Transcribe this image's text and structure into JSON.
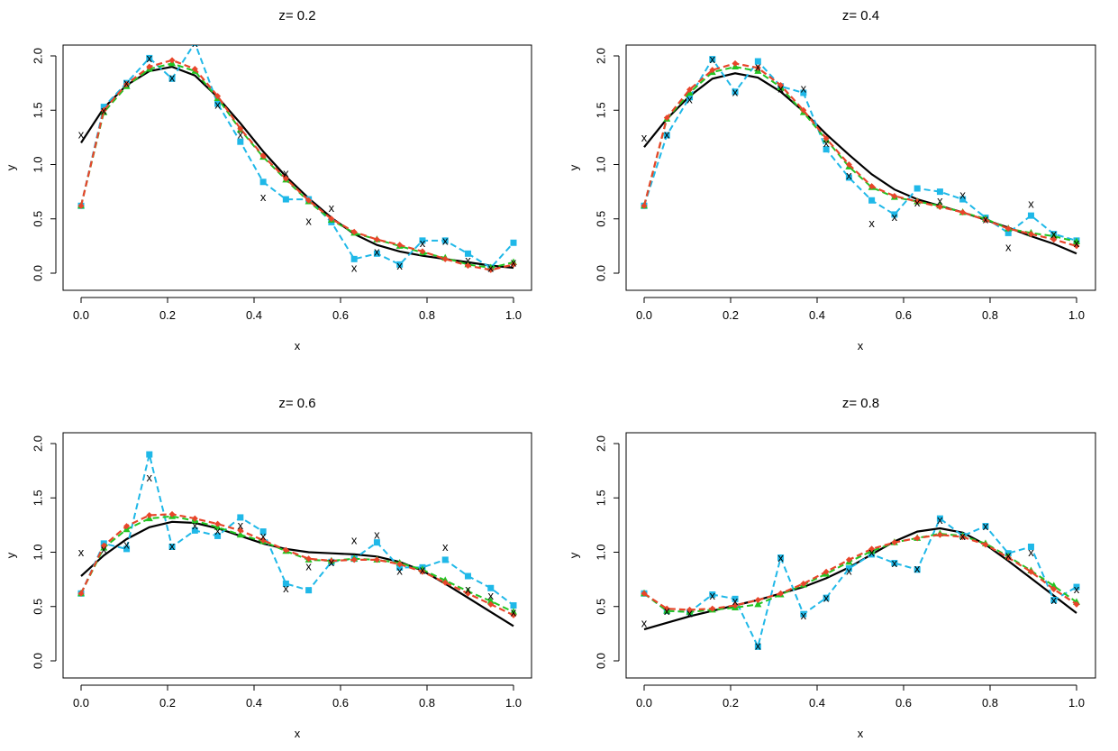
{
  "colors": {
    "truth": "#000000",
    "series_a": "#1fb8e8",
    "series_b": "#22c422",
    "series_c": "#e8452a",
    "series_d": "#b80000",
    "observed": "#000000"
  },
  "chart_data": [
    {
      "type": "line",
      "title": "z= 0.2",
      "xlabel": "x",
      "ylabel": "y",
      "xlim": [
        0,
        1
      ],
      "ylim": [
        0,
        2
      ],
      "xticks": [
        "0.0",
        "0.2",
        "0.4",
        "0.6",
        "0.8",
        "1.0"
      ],
      "yticks": [
        "0.0",
        "0.5",
        "1.0",
        "1.5",
        "2.0"
      ],
      "x": [
        0,
        0.0526,
        0.1053,
        0.1579,
        0.2105,
        0.2632,
        0.3158,
        0.3684,
        0.4211,
        0.4737,
        0.5263,
        0.5789,
        0.6316,
        0.6842,
        0.7368,
        0.7895,
        0.8421,
        0.8947,
        0.9474,
        1.0
      ],
      "truth": [
        1.2,
        1.52,
        1.73,
        1.86,
        1.9,
        1.82,
        1.62,
        1.38,
        1.12,
        0.89,
        0.69,
        0.51,
        0.36,
        0.26,
        0.2,
        0.16,
        0.13,
        0.1,
        0.07,
        0.05
      ],
      "observed": [
        1.28,
        1.5,
        1.75,
        1.98,
        1.8,
        2.12,
        1.55,
        1.28,
        0.7,
        0.92,
        0.48,
        0.6,
        0.05,
        0.2,
        0.07,
        0.28,
        0.3,
        0.12,
        0.05,
        0.1
      ],
      "series": [
        {
          "name": "cyan",
          "values": [
            0.62,
            1.53,
            1.75,
            1.98,
            1.79,
            2.12,
            1.56,
            1.21,
            0.84,
            0.68,
            0.68,
            0.47,
            0.13,
            0.18,
            0.08,
            0.3,
            0.3,
            0.18,
            0.05,
            0.28
          ]
        },
        {
          "name": "green",
          "values": [
            0.62,
            1.48,
            1.72,
            1.88,
            1.93,
            1.86,
            1.61,
            1.32,
            1.07,
            0.86,
            0.66,
            0.49,
            0.37,
            0.31,
            0.25,
            0.19,
            0.14,
            0.08,
            0.05,
            0.1
          ]
        },
        {
          "name": "orange",
          "values": [
            0.62,
            1.5,
            1.74,
            1.9,
            1.96,
            1.88,
            1.63,
            1.33,
            1.08,
            0.87,
            0.67,
            0.5,
            0.38,
            0.31,
            0.26,
            0.2,
            0.13,
            0.07,
            0.03,
            0.08
          ]
        }
      ]
    },
    {
      "type": "line",
      "title": "z= 0.4",
      "xlabel": "x",
      "ylabel": "y",
      "xlim": [
        0,
        1
      ],
      "ylim": [
        0,
        2
      ],
      "xticks": [
        "0.0",
        "0.2",
        "0.4",
        "0.6",
        "0.8",
        "1.0"
      ],
      "yticks": [
        "0.0",
        "0.5",
        "1.0",
        "1.5",
        "2.0"
      ],
      "x": [
        0,
        0.0526,
        0.1053,
        0.1579,
        0.2105,
        0.2632,
        0.3158,
        0.3684,
        0.4211,
        0.4737,
        0.5263,
        0.5789,
        0.6316,
        0.6842,
        0.7368,
        0.7895,
        0.8421,
        0.8947,
        0.9474,
        1.0
      ],
      "truth": [
        1.16,
        1.42,
        1.63,
        1.79,
        1.84,
        1.8,
        1.67,
        1.49,
        1.28,
        1.09,
        0.91,
        0.77,
        0.68,
        0.62,
        0.56,
        0.49,
        0.42,
        0.34,
        0.27,
        0.18
      ],
      "observed": [
        1.25,
        1.28,
        1.6,
        1.97,
        1.67,
        1.9,
        1.7,
        1.7,
        1.2,
        0.9,
        0.46,
        0.52,
        0.65,
        0.67,
        0.72,
        0.5,
        0.24,
        0.64,
        0.36,
        0.28
      ],
      "series": [
        {
          "name": "cyan",
          "values": [
            0.62,
            1.27,
            1.62,
            1.97,
            1.67,
            1.95,
            1.72,
            1.66,
            1.14,
            0.88,
            0.67,
            0.54,
            0.78,
            0.75,
            0.68,
            0.51,
            0.37,
            0.53,
            0.36,
            0.3
          ]
        },
        {
          "name": "green",
          "values": [
            0.62,
            1.42,
            1.66,
            1.85,
            1.9,
            1.86,
            1.71,
            1.48,
            1.23,
            0.98,
            0.79,
            0.7,
            0.66,
            0.62,
            0.56,
            0.5,
            0.41,
            0.37,
            0.34,
            0.29
          ]
        },
        {
          "name": "orange",
          "values": [
            0.62,
            1.43,
            1.69,
            1.87,
            1.93,
            1.89,
            1.73,
            1.5,
            1.24,
            1.0,
            0.8,
            0.71,
            0.66,
            0.61,
            0.56,
            0.49,
            0.41,
            0.36,
            0.31,
            0.25
          ]
        }
      ]
    },
    {
      "type": "line",
      "title": "z= 0.6",
      "xlabel": "x",
      "ylabel": "y",
      "xlim": [
        0,
        1
      ],
      "ylim": [
        0,
        2
      ],
      "xticks": [
        "0.0",
        "0.2",
        "0.4",
        "0.6",
        "0.8",
        "1.0"
      ],
      "yticks": [
        "0.0",
        "0.5",
        "1.0",
        "1.5",
        "2.0"
      ],
      "x": [
        0,
        0.0526,
        0.1053,
        0.1579,
        0.2105,
        0.2632,
        0.3158,
        0.3684,
        0.4211,
        0.4737,
        0.5263,
        0.5789,
        0.6316,
        0.6842,
        0.7368,
        0.7895,
        0.8421,
        0.8947,
        0.9474,
        1.0
      ],
      "truth": [
        0.78,
        0.97,
        1.12,
        1.23,
        1.28,
        1.27,
        1.22,
        1.15,
        1.08,
        1.03,
        1.0,
        0.99,
        0.98,
        0.96,
        0.91,
        0.83,
        0.71,
        0.58,
        0.45,
        0.32
      ],
      "observed": [
        1.0,
        1.03,
        1.07,
        1.69,
        1.06,
        1.25,
        1.2,
        1.25,
        1.15,
        0.67,
        0.87,
        0.91,
        1.11,
        1.16,
        0.83,
        0.84,
        1.05,
        0.66,
        0.6,
        0.45
      ],
      "series": [
        {
          "name": "cyan",
          "values": [
            0.62,
            1.08,
            1.03,
            1.9,
            1.05,
            1.2,
            1.15,
            1.32,
            1.19,
            0.71,
            0.65,
            0.91,
            0.94,
            1.09,
            0.86,
            0.86,
            0.93,
            0.78,
            0.67,
            0.51
          ]
        },
        {
          "name": "green",
          "values": [
            0.62,
            1.04,
            1.21,
            1.31,
            1.33,
            1.29,
            1.23,
            1.16,
            1.1,
            1.01,
            0.93,
            0.92,
            0.94,
            0.93,
            0.9,
            0.84,
            0.74,
            0.64,
            0.55,
            0.45
          ]
        },
        {
          "name": "orange",
          "values": [
            0.62,
            1.06,
            1.24,
            1.34,
            1.35,
            1.31,
            1.26,
            1.2,
            1.11,
            1.02,
            0.94,
            0.92,
            0.93,
            0.93,
            0.89,
            0.82,
            0.72,
            0.62,
            0.52,
            0.42
          ]
        }
      ]
    },
    {
      "type": "line",
      "title": "z= 0.8",
      "xlabel": "x",
      "ylabel": "y",
      "xlim": [
        0,
        1
      ],
      "ylim": [
        0,
        2
      ],
      "xticks": [
        "0.0",
        "0.2",
        "0.4",
        "0.6",
        "0.8",
        "1.0"
      ],
      "yticks": [
        "0.0",
        "0.5",
        "1.0",
        "1.5",
        "2.0"
      ],
      "x": [
        0,
        0.0526,
        0.1053,
        0.1579,
        0.2105,
        0.2632,
        0.3158,
        0.3684,
        0.4211,
        0.4737,
        0.5263,
        0.5789,
        0.6316,
        0.6842,
        0.7368,
        0.7895,
        0.8421,
        0.8947,
        0.9474,
        1.0
      ],
      "truth": [
        0.29,
        0.35,
        0.41,
        0.46,
        0.51,
        0.56,
        0.62,
        0.68,
        0.76,
        0.86,
        0.98,
        1.1,
        1.19,
        1.22,
        1.18,
        1.07,
        0.92,
        0.76,
        0.6,
        0.44
      ],
      "observed": [
        0.35,
        0.46,
        0.44,
        0.6,
        0.55,
        0.14,
        0.95,
        0.42,
        0.58,
        0.83,
        1.0,
        0.9,
        0.85,
        1.3,
        1.15,
        1.24,
        0.97,
        1.0,
        0.56,
        0.66
      ],
      "series": [
        {
          "name": "cyan",
          "values": [
            0.62,
            0.46,
            0.45,
            0.61,
            0.57,
            0.13,
            0.95,
            0.43,
            0.58,
            0.85,
            0.98,
            0.9,
            0.84,
            1.31,
            1.15,
            1.24,
            0.99,
            1.05,
            0.56,
            0.68
          ]
        },
        {
          "name": "green",
          "values": [
            0.62,
            0.46,
            0.45,
            0.47,
            0.49,
            0.52,
            0.61,
            0.7,
            0.8,
            0.91,
            1.01,
            1.09,
            1.13,
            1.17,
            1.15,
            1.08,
            0.96,
            0.83,
            0.69,
            0.54
          ]
        },
        {
          "name": "orange",
          "values": [
            0.62,
            0.48,
            0.47,
            0.48,
            0.51,
            0.56,
            0.62,
            0.71,
            0.82,
            0.93,
            1.03,
            1.09,
            1.13,
            1.16,
            1.14,
            1.07,
            0.95,
            0.82,
            0.66,
            0.52
          ]
        }
      ]
    }
  ]
}
